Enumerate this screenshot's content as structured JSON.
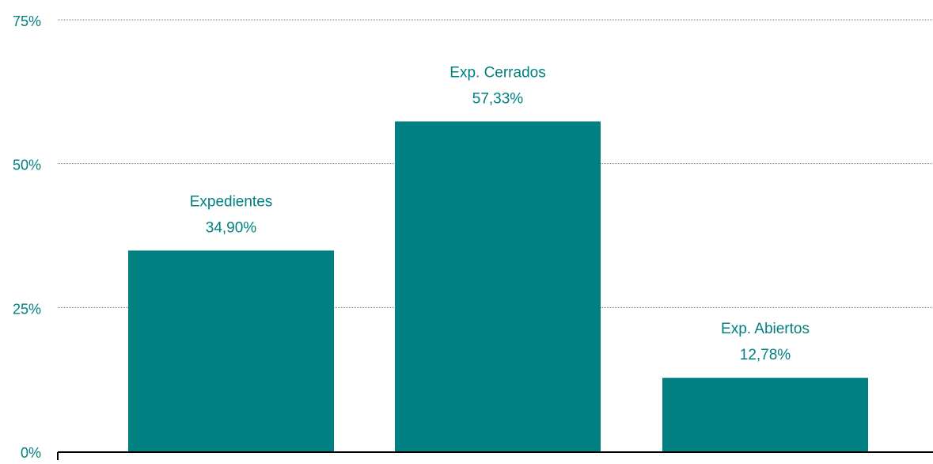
{
  "colors": {
    "bar": "#008080",
    "label": "#008080",
    "grid": "#808080",
    "axis": "#000000"
  },
  "chart_data": {
    "type": "bar",
    "categories": [
      "Expedientes",
      "Exp. Cerrados",
      "Exp. Abiertos"
    ],
    "values": [
      34.9,
      57.33,
      12.78
    ],
    "value_labels": [
      "34,90%",
      "57,33%",
      "12,78%"
    ],
    "ylim": [
      0,
      75
    ],
    "yticks": [
      0,
      25,
      50,
      75
    ],
    "ytick_labels": [
      "0%",
      "25%",
      "50%",
      "75%"
    ],
    "grid": true,
    "legend": "none",
    "title": "",
    "xlabel": "",
    "ylabel": ""
  }
}
